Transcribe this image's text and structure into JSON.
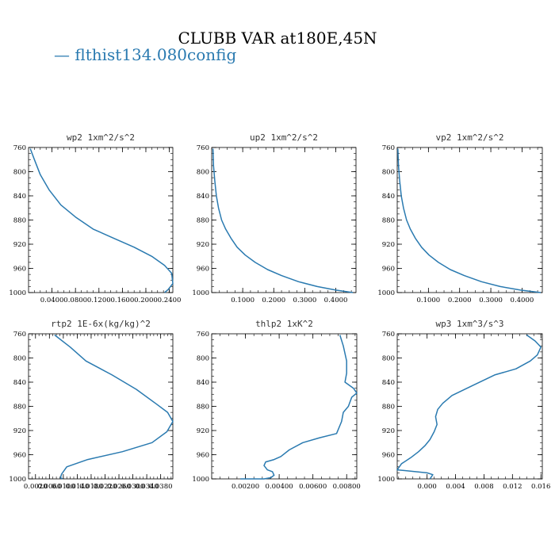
{
  "figure": {
    "title": "CLUBB VAR at180E,45N",
    "legend_label": "— flthist134.080config",
    "line_color": "#2a7ab0"
  },
  "chart_data": [
    {
      "type": "line",
      "title": "wp2   1xm^2/s^2",
      "series": [
        {
          "name": "flthist134.080config",
          "x": [
            0.003,
            0.01,
            0.02,
            0.035,
            0.055,
            0.08,
            0.11,
            0.145,
            0.18,
            0.21,
            0.232,
            0.244,
            0.246,
            0.238,
            0.232
          ],
          "y": [
            762,
            780,
            805,
            830,
            855,
            875,
            895,
            910,
            925,
            940,
            955,
            968,
            985,
            995,
            1000
          ]
        }
      ],
      "xlim": [
        0.0,
        0.246
      ],
      "xticks": [
        0.04,
        0.08,
        0.12,
        0.16,
        0.2,
        0.24
      ],
      "xtick_labels": [
        "0.0400",
        "0.0800",
        "0.1200",
        "0.1600",
        "0.2000",
        "0.2400"
      ],
      "ylim": [
        760,
        1000
      ],
      "yticks": [
        760,
        800,
        840,
        880,
        920,
        960,
        1000
      ]
    },
    {
      "type": "line",
      "title": "up2   1xm^2/s^2",
      "series": [
        {
          "name": "flthist134.080config",
          "x": [
            0.004,
            0.006,
            0.01,
            0.015,
            0.022,
            0.032,
            0.045,
            0.062,
            0.082,
            0.108,
            0.14,
            0.18,
            0.225,
            0.28,
            0.34,
            0.4,
            0.455
          ],
          "y": [
            762,
            790,
            815,
            840,
            860,
            880,
            895,
            910,
            925,
            938,
            950,
            962,
            972,
            982,
            990,
            996,
            1000
          ]
        }
      ],
      "xlim": [
        0.0,
        0.465
      ],
      "xticks": [
        0.1,
        0.2,
        0.3,
        0.4
      ],
      "xtick_labels": [
        "0.1000",
        "0.2000",
        "0.3000",
        "0.4000"
      ],
      "ylim": [
        760,
        1000
      ],
      "yticks": [
        760,
        800,
        840,
        880,
        920,
        960,
        1000
      ]
    },
    {
      "type": "line",
      "title": "vp2   1xm^2/s^2",
      "series": [
        {
          "name": "flthist134.080config",
          "x": [
            0.002,
            0.004,
            0.008,
            0.013,
            0.02,
            0.03,
            0.042,
            0.058,
            0.078,
            0.102,
            0.132,
            0.17,
            0.215,
            0.27,
            0.33,
            0.395,
            0.46
          ],
          "y": [
            762,
            790,
            815,
            840,
            860,
            880,
            895,
            910,
            925,
            938,
            950,
            962,
            972,
            982,
            990,
            996,
            1000
          ]
        }
      ],
      "xlim": [
        0.0,
        0.465
      ],
      "xticks": [
        0.1,
        0.2,
        0.3,
        0.4
      ],
      "xtick_labels": [
        "0.1000",
        "0.2000",
        "0.3000",
        "0.4000"
      ],
      "ylim": [
        760,
        1000
      ],
      "yticks": [
        760,
        800,
        840,
        880,
        920,
        960,
        1000
      ]
    },
    {
      "type": "line",
      "title": "rtp2   1E-6x(kg/kg)^2",
      "series": [
        {
          "name": "flthist134.080config",
          "x": [
            7.5e-06,
            1.2e-05,
            1.65e-05,
            2.4e-05,
            3.1e-05,
            3.65e-05,
            4e-05,
            4.15e-05,
            3.98e-05,
            3.55e-05,
            2.7e-05,
            1.7e-05,
            1.1e-05,
            9.5e-06,
            9.2e-06,
            9.8e-06
          ],
          "y": [
            762,
            782,
            805,
            828,
            852,
            875,
            890,
            905,
            922,
            940,
            955,
            968,
            980,
            992,
            998,
            1000
          ]
        }
      ],
      "xlim": [
        0.0,
        4.15e-05
      ],
      "xticks": [
        2e-06,
        6e-06,
        1e-05,
        1.4e-05,
        1.8e-05,
        2.2e-05,
        2.6e-05,
        3e-05,
        3.4e-05,
        3.8e-05
      ],
      "xtick_labels": [
        "0.0020",
        "0.0060",
        "0.0100",
        "0.0140",
        "0.0180",
        "0.0220",
        "0.0260",
        "0.0300",
        "0.0340",
        "0.0380"
      ],
      "ylim": [
        760,
        1000
      ],
      "yticks": [
        760,
        800,
        840,
        880,
        920,
        960,
        1000
      ]
    },
    {
      "type": "line",
      "title": "thlp2   1xK^2",
      "series": [
        {
          "name": "flthist134.080config",
          "x": [
            0.0076,
            0.0078,
            0.008,
            0.008,
            0.0079,
            0.0084,
            0.0086,
            0.0083,
            0.0081,
            0.0078,
            0.0077,
            0.0074,
            0.0064,
            0.0054,
            0.0046,
            0.0041,
            0.0037,
            0.0032,
            0.0031,
            0.0033,
            0.0036,
            0.0037,
            0.0035,
            0.0031,
            0.0026,
            0.0021,
            0.0017
          ],
          "y": [
            762,
            780,
            805,
            825,
            840,
            850,
            858,
            865,
            880,
            890,
            905,
            925,
            932,
            940,
            952,
            963,
            968,
            972,
            978,
            985,
            988,
            994,
            998,
            1000,
            1001,
            1001,
            1002
          ]
        }
      ],
      "xlim": [
        0.0,
        0.0086
      ],
      "xticks": [
        0.002,
        0.004,
        0.006,
        0.008
      ],
      "xtick_labels": [
        "0.00200",
        "0.00400",
        "0.00600",
        "0.00800"
      ],
      "ylim": [
        760,
        1000
      ],
      "yticks": [
        760,
        800,
        840,
        880,
        920,
        960,
        1000
      ]
    },
    {
      "type": "line",
      "title": "wp3   1xm^3/s^3",
      "series": [
        {
          "name": "flthist134.080config",
          "x": [
            0.014,
            0.0152,
            0.016,
            0.0155,
            0.0145,
            0.0125,
            0.0095,
            0.0065,
            0.0035,
            0.0022,
            0.0015,
            0.0012,
            0.0014,
            0.001,
            0.0004,
            -0.0003,
            -0.0012,
            -0.0023,
            -0.0036,
            -0.0042,
            0.0,
            0.0008,
            0.0004
          ],
          "y": [
            762,
            772,
            782,
            795,
            805,
            818,
            828,
            845,
            862,
            875,
            885,
            897,
            910,
            922,
            935,
            945,
            955,
            965,
            975,
            985,
            990,
            993,
            1000
          ]
        }
      ],
      "xlim": [
        -0.0042,
        0.0162
      ],
      "xticks": [
        0.0,
        0.004,
        0.008,
        0.012,
        0.016
      ],
      "xtick_labels": [
        "0.000",
        "0.004",
        "0.008",
        "0.012",
        "0.016"
      ],
      "ylim": [
        760,
        1000
      ],
      "yticks": [
        760,
        800,
        840,
        880,
        920,
        960,
        1000
      ]
    }
  ]
}
